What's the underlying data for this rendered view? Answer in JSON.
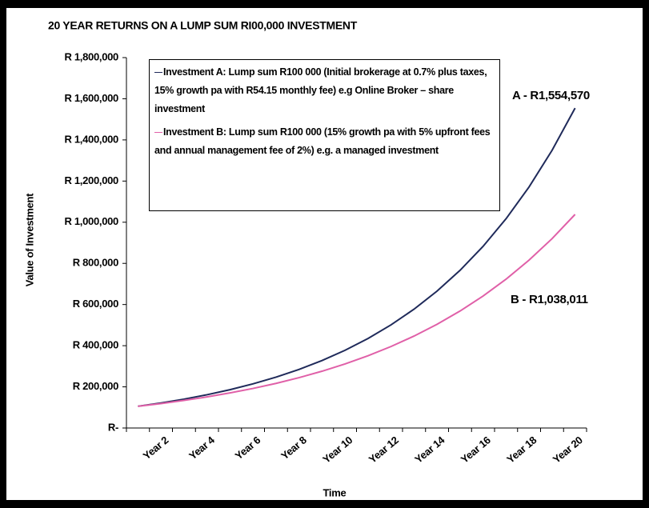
{
  "chart_data": {
    "type": "line",
    "title": "20 YEAR RETURNS ON A LUMP SUM RI00,000 INVESTMENT",
    "x_label": "Time",
    "y_label": "Value of Investment",
    "categories": [
      null,
      "Year 2",
      null,
      "Year 4",
      null,
      "Year 6",
      null,
      "Year 8",
      null,
      "Year 10",
      null,
      "Year 12",
      null,
      "Year 14",
      null,
      "Year 16",
      null,
      "Year 18",
      null,
      "Year 20"
    ],
    "series": [
      {
        "name": "Investment A: Lump sum R100 000 (Initial brokerage at 0.7% plus taxes, 15% growth pa with R54.15 monthly fee) e.g Online Broker – share investment",
        "color": "#1f2a5a",
        "values": [
          105684,
          121767,
          140240,
          161583,
          186133,
          214424,
          247009,
          284564,
          327810,
          377644,
          435040,
          501168,
          577346,
          665113,
          766204,
          882667,
          1016856,
          1171400,
          1349453,
          1554570
        ]
      },
      {
        "name": "Investment B: Lump sum R100 000 (15% growth pa with 5% upfront fees and annual management fee of 2%) e.g. a managed investment",
        "color": "#e060a8",
        "values": [
          105275,
          118765,
          133952,
          151030,
          170432,
          192250,
          216839,
          244615,
          275930,
          311248,
          351095,
          396034,
          446726,
          503820,
          568399,
          641140,
          723256,
          815785,
          920222,
          1038011
        ]
      }
    ],
    "annotations": [
      "A - R1,554,570",
      "B - R1,038,011"
    ],
    "ylim": [
      0,
      1800000
    ],
    "yticks": [
      {
        "value": 0,
        "label": "R-"
      },
      {
        "value": 200000,
        "label": "R 200,000"
      },
      {
        "value": 400000,
        "label": "R 400,000"
      },
      {
        "value": 600000,
        "label": "R 600,000"
      },
      {
        "value": 800000,
        "label": "R 800,000"
      },
      {
        "value": 1000000,
        "label": "R 1,000,000"
      },
      {
        "value": 1200000,
        "label": "R 1,200,000"
      },
      {
        "value": 1400000,
        "label": "R 1,400,000"
      },
      {
        "value": 1600000,
        "label": "R 1,600,000"
      },
      {
        "value": 1800000,
        "label": "R 1,800,000"
      }
    ],
    "grid": false
  }
}
